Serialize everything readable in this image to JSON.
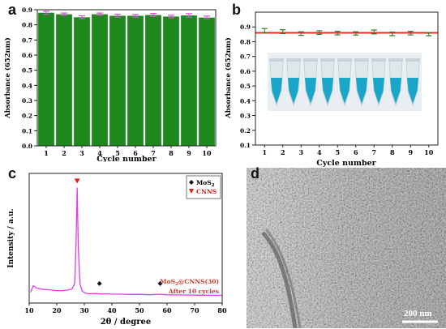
{
  "panels": [
    {
      "id": "a",
      "label": "a"
    },
    {
      "id": "b",
      "label": "b"
    },
    {
      "id": "c",
      "label": "c"
    },
    {
      "id": "d",
      "label": "d"
    }
  ],
  "scale_bar": "200 nm",
  "colors": {
    "bar_fill": "#1e8a1e",
    "errorbar_a": "#d24fd2",
    "errorbar_b": "#2a7a2a",
    "refline": "#e0302a",
    "xrd_line": "#e23ee2",
    "mos2_marker": "#111111",
    "cnns_marker": "#e02020",
    "annotation_red": "#d33b2a"
  },
  "chart_data": [
    {
      "type": "bar",
      "categories": [
        "1",
        "2",
        "3",
        "4",
        "5",
        "6",
        "7",
        "8",
        "9",
        "10"
      ],
      "values": [
        0.88,
        0.87,
        0.85,
        0.87,
        0.86,
        0.86,
        0.865,
        0.855,
        0.862,
        0.848
      ],
      "errors": [
        0.01,
        0.008,
        0.01,
        0.008,
        0.01,
        0.009,
        0.01,
        0.009,
        0.012,
        0.01
      ],
      "xlabel": "Cycle number",
      "ylabel": "Absorbance (652nm)",
      "ylim": [
        0.0,
        0.9
      ],
      "yticks": [
        "0.0",
        "0.1",
        "0.2",
        "0.3",
        "0.4",
        "0.5",
        "0.6",
        "0.7",
        "0.8",
        "0.9"
      ]
    },
    {
      "type": "scatter",
      "categories": [
        "1",
        "2",
        "3",
        "4",
        "5",
        "6",
        "7",
        "8",
        "9",
        "10"
      ],
      "values": [
        0.875,
        0.868,
        0.855,
        0.862,
        0.858,
        0.856,
        0.866,
        0.853,
        0.858,
        0.851
      ],
      "errors": [
        0.014,
        0.013,
        0.012,
        0.012,
        0.012,
        0.011,
        0.013,
        0.012,
        0.012,
        0.011
      ],
      "reference_line": 0.86,
      "xlabel": "Cycle number",
      "ylabel": "Absorbance (652nm)",
      "ylim": [
        0.1,
        1.0
      ],
      "yticks": [
        "0.1",
        "0.2",
        "0.3",
        "0.4",
        "0.5",
        "0.6",
        "0.7",
        "0.8",
        "0.9"
      ]
    },
    {
      "type": "line",
      "xlabel": "2θ / degree",
      "ylabel": "Intensity / a.u.",
      "xlim": [
        10,
        80
      ],
      "xticks": [
        "10",
        "20",
        "30",
        "40",
        "50",
        "60",
        "70",
        "80"
      ],
      "x": [
        10.5,
        11.5,
        12.5,
        14,
        16,
        18,
        20,
        22,
        24,
        25.5,
        26.5,
        27.0,
        27.4,
        27.8,
        28.4,
        29.2,
        30.5,
        32,
        34,
        36,
        38,
        40,
        43,
        46,
        50,
        54,
        57,
        60,
        64,
        68,
        72,
        76,
        80
      ],
      "y": [
        4,
        10,
        8,
        7,
        6.5,
        6,
        5.5,
        5.5,
        6,
        7,
        12,
        48,
        100,
        46,
        12,
        5,
        3,
        2.6,
        2.8,
        2.4,
        2.5,
        2.3,
        2.2,
        2,
        2.1,
        1.7,
        2.2,
        1.6,
        1.5,
        1.4,
        1.3,
        1.2,
        1.1
      ],
      "legend": [
        {
          "marker": "diamond",
          "label": "MoS",
          "sub": "2"
        },
        {
          "marker": "triangle",
          "label": "CNNS"
        }
      ],
      "markers": [
        {
          "type": "diamond",
          "x": 35.5,
          "y": 12
        },
        {
          "type": "diamond",
          "x": 57.5,
          "y": 12
        },
        {
          "type": "triangle",
          "x": 27.4,
          "y": 106
        }
      ],
      "annotation_line1_main": "MoS",
      "annotation_line1_sub": "2",
      "annotation_line1_rest": "@CNNS(30)",
      "annotation_line2": "After 10 cycles"
    }
  ]
}
